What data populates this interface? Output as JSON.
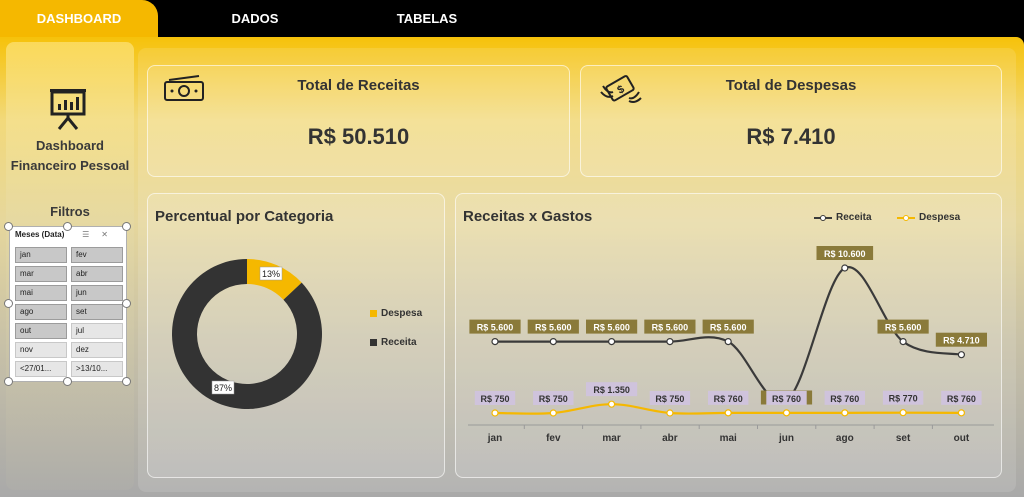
{
  "nav": {
    "tabs": [
      {
        "label": "DASHBOARD",
        "active": true
      },
      {
        "label": "DADOS",
        "active": false
      },
      {
        "label": "TABELAS",
        "active": false
      }
    ]
  },
  "sidebar": {
    "title_line1": "Dashboard",
    "title_line2": "Financeiro Pessoal",
    "filters_label": "Filtros",
    "slicer": {
      "header": "Meses (Data)",
      "items": [
        {
          "label": "jan",
          "selected": true
        },
        {
          "label": "fev",
          "selected": true
        },
        {
          "label": "mar",
          "selected": true
        },
        {
          "label": "abr",
          "selected": true
        },
        {
          "label": "mai",
          "selected": true
        },
        {
          "label": "jun",
          "selected": true
        },
        {
          "label": "ago",
          "selected": true
        },
        {
          "label": "set",
          "selected": true
        },
        {
          "label": "out",
          "selected": true
        },
        {
          "label": "jul",
          "selected": false
        },
        {
          "label": "nov",
          "selected": false
        },
        {
          "label": "dez",
          "selected": false
        },
        {
          "label": "<27/01...",
          "selected": false
        },
        {
          "label": ">13/10...",
          "selected": false
        }
      ]
    }
  },
  "kpis": {
    "receitas": {
      "title": "Total de Receitas",
      "value": "R$ 50.510",
      "icon": "money-bill-icon"
    },
    "despesas": {
      "title": "Total de Despesas",
      "value": "R$ 7.410",
      "icon": "flying-money-icon"
    }
  },
  "donut": {
    "title": "Percentual por Categoria",
    "legend": [
      {
        "label": "Despesa",
        "color": "#f5b800"
      },
      {
        "label": "Receita",
        "color": "#333333"
      }
    ]
  },
  "line": {
    "title": "Receitas x Gastos",
    "legend": [
      {
        "label": "Receita",
        "color": "#3a3a3a"
      },
      {
        "label": "Despesa",
        "color": "#f5b800"
      }
    ]
  },
  "colors": {
    "accent": "#f5b800",
    "dark": "#333333",
    "label_gold": "#8a7a3a",
    "label_lilac": "#cfc3dc"
  },
  "chart_data": [
    {
      "type": "pie",
      "title": "Percentual por Categoria",
      "categories": [
        "Despesa",
        "Receita"
      ],
      "values": [
        13,
        87
      ],
      "labels": [
        "13%",
        "87%"
      ]
    },
    {
      "type": "line",
      "title": "Receitas x Gastos",
      "categories": [
        "jan",
        "fev",
        "mar",
        "abr",
        "mai",
        "jun",
        "ago",
        "set",
        "out"
      ],
      "series": [
        {
          "name": "Receita",
          "values": [
            5600,
            5600,
            5600,
            5600,
            5600,
            1600,
            10600,
            5600,
            4710
          ],
          "labels": [
            "R$ 5.600",
            "R$ 5.600",
            "R$ 5.600",
            "R$ 5.600",
            "R$ 5.600",
            "R$ 1.600",
            "R$ 10.600",
            "R$ 5.600",
            "R$ 4.710"
          ]
        },
        {
          "name": "Despesa",
          "values": [
            750,
            750,
            1350,
            750,
            760,
            760,
            760,
            770,
            760
          ],
          "labels": [
            "R$ 750",
            "R$ 750",
            "R$ 1.350",
            "R$ 750",
            "R$ 760",
            "R$ 760",
            "R$ 760",
            "R$ 770",
            "R$ 760"
          ]
        }
      ]
    }
  ]
}
